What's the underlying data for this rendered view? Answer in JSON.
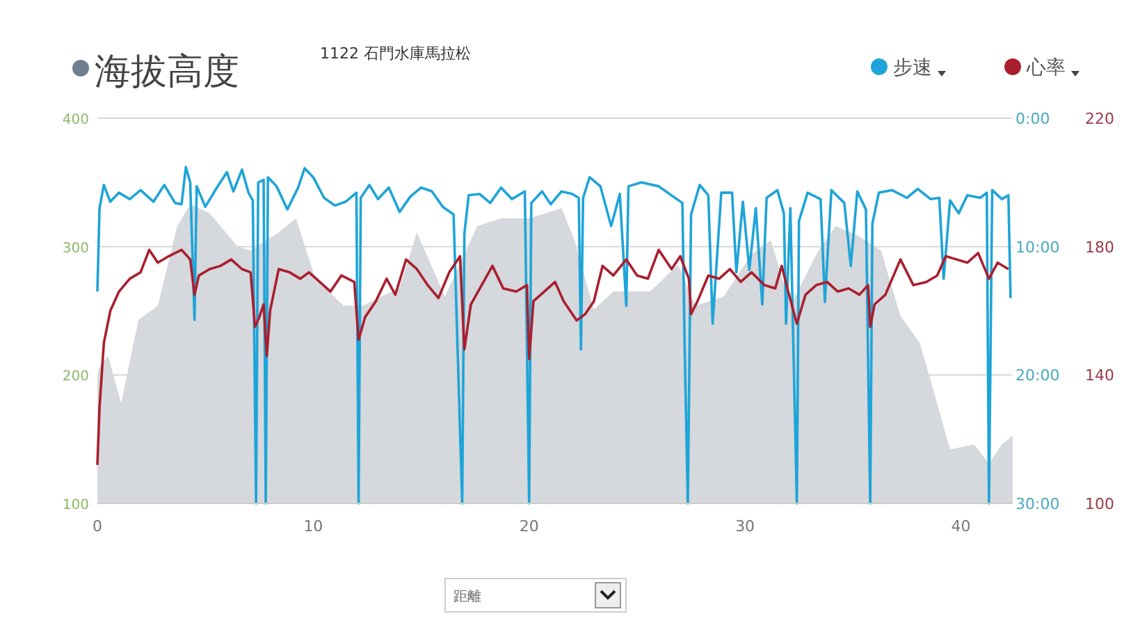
{
  "chart_data": {
    "type": "line",
    "title": "海拔高度",
    "subtitle": "1122 石門水庫馬拉松",
    "xlabel": "距離",
    "xlim": [
      0,
      42.4
    ],
    "xticks": [
      0,
      10,
      20,
      30,
      40
    ],
    "ylim": [
      100,
      400
    ],
    "yticks": [
      100,
      200,
      300,
      400
    ],
    "y2lim": [
      30,
      0
    ],
    "y2ticks": [
      {
        "value": 0,
        "label": "0:00"
      },
      {
        "value": 10,
        "label": "10:00"
      },
      {
        "value": 20,
        "label": "20:00"
      },
      {
        "value": 30,
        "label": "30:00"
      }
    ],
    "y3lim": [
      100,
      220
    ],
    "y3ticks": [
      100,
      140,
      180,
      220
    ],
    "grid": "y",
    "legend": "top right",
    "series": [
      {
        "type": "area",
        "color": "#d5d8dc",
        "x": [
          0,
          0.05,
          0.5,
          1.1,
          1.9,
          2.8,
          3.7,
          4.3,
          5.2,
          6.5,
          7.1,
          8.4,
          9.2,
          10.1,
          11.4,
          12.3,
          14,
          14.8,
          16.1,
          17.6,
          18.7,
          20,
          21.5,
          22.1,
          23,
          23.9,
          25.6,
          26.9,
          27.7,
          29,
          30.3,
          31.2,
          32.1,
          33.4,
          34.2,
          35.3,
          36.3,
          37.2,
          38.1,
          38.9,
          39.5,
          40.6,
          41.3,
          41.9,
          42.4
        ],
        "values": [
          196,
          205,
          215,
          178,
          243,
          254,
          316,
          333,
          326,
          300,
          297,
          311,
          322,
          275,
          254,
          254,
          268,
          311,
          261,
          316,
          322,
          322,
          330,
          305,
          251,
          265,
          265,
          286,
          254,
          261,
          294,
          305,
          254,
          297,
          316,
          308,
          297,
          246,
          225,
          178,
          142,
          146,
          131,
          146,
          153
        ]
      },
      {
        "name": "步速",
        "axis": "y2",
        "color": "#1ea4d8",
        "x": [
          0,
          0.1,
          0.3,
          0.6,
          1,
          1.5,
          2,
          2.6,
          3.1,
          3.6,
          3.9,
          4.1,
          4.3,
          4.5,
          4.6,
          5,
          5.5,
          6,
          6.3,
          6.7,
          7,
          7.2,
          7.35,
          7.45,
          7.7,
          7.8,
          7.9,
          8.3,
          8.8,
          9.3,
          9.6,
          10,
          10.5,
          11,
          11.5,
          12,
          12.1,
          12.2,
          12.6,
          13,
          13.5,
          14,
          14.5,
          15,
          15.5,
          16,
          16.5,
          16.9,
          17,
          17.2,
          17.7,
          18.2,
          18.7,
          19.2,
          19.8,
          20,
          20.1,
          20.6,
          21,
          21.5,
          22,
          22.3,
          22.4,
          22.5,
          22.8,
          23.3,
          23.8,
          24.2,
          24.5,
          24.6,
          25.2,
          26,
          26.5,
          27.1,
          27.2,
          27.35,
          27.5,
          27.9,
          28.3,
          28.5,
          28.9,
          29.4,
          29.6,
          29.9,
          30.2,
          30.5,
          30.8,
          31,
          31.5,
          31.8,
          31.9,
          32.1,
          32.4,
          32.5,
          32.9,
          33.5,
          33.7,
          34,
          34.6,
          34.9,
          35.2,
          35.6,
          35.8,
          35.9,
          36.2,
          36.8,
          37.5,
          38,
          38.6,
          39,
          39.2,
          39.5,
          39.9,
          40.3,
          40.9,
          41.2,
          41.3,
          41.45,
          41.9,
          42.2,
          42.3
        ],
        "values": [
          13.5,
          7,
          5.2,
          6.5,
          5.8,
          6.3,
          5.6,
          6.5,
          5.2,
          6.6,
          6.7,
          3.8,
          5,
          15.7,
          5.3,
          6.9,
          5.5,
          4.2,
          5.7,
          4,
          5.8,
          6.4,
          30,
          5,
          4.8,
          30,
          4.6,
          5.3,
          7.1,
          5.4,
          3.9,
          4.6,
          6.2,
          6.8,
          6.5,
          5.8,
          30,
          6.2,
          5.2,
          6.3,
          5.4,
          7.3,
          6.1,
          5.4,
          5.7,
          6.9,
          7.5,
          30,
          9,
          6,
          5.9,
          6.6,
          5.4,
          6.3,
          5.7,
          30,
          6.6,
          5.7,
          6.7,
          5.7,
          5.9,
          6.2,
          18,
          6.2,
          4.6,
          5.3,
          8.4,
          5.9,
          14.6,
          5.3,
          5,
          5.3,
          5.9,
          6.6,
          17.4,
          30,
          7.5,
          5.2,
          6,
          16,
          5.8,
          5.8,
          12,
          6.5,
          11.8,
          7,
          14.5,
          6.2,
          5.6,
          7.4,
          16,
          7,
          30,
          8,
          5.8,
          6.3,
          14.3,
          5.6,
          6.6,
          11.5,
          5.7,
          7.1,
          30,
          8.2,
          5.8,
          5.6,
          6.2,
          5.5,
          6.3,
          6.2,
          12.5,
          6.4,
          7.4,
          6,
          6.2,
          5.8,
          30,
          5.6,
          6.3,
          6,
          14
        ]
      },
      {
        "name": "心率",
        "axis": "y3",
        "color": "#a91f2e",
        "x": [
          0,
          0.1,
          0.3,
          0.6,
          1,
          1.5,
          2,
          2.4,
          2.8,
          3.3,
          3.9,
          4.3,
          4.5,
          4.7,
          5.2,
          5.7,
          6.2,
          6.7,
          7.1,
          7.3,
          7.5,
          7.7,
          7.85,
          8,
          8.4,
          8.9,
          9.4,
          9.8,
          10.3,
          10.8,
          11.3,
          11.9,
          12.1,
          12.4,
          12.9,
          13.4,
          13.8,
          14.3,
          14.8,
          15.3,
          15.8,
          16.3,
          16.8,
          17,
          17.3,
          17.8,
          18.3,
          18.8,
          19.4,
          19.9,
          20,
          20.2,
          20.7,
          21.2,
          21.6,
          22.2,
          22.6,
          23,
          23.4,
          23.9,
          24.5,
          25,
          25.5,
          26,
          26.6,
          27,
          27.4,
          27.5,
          27.8,
          28.3,
          28.8,
          29.3,
          29.8,
          30.3,
          30.9,
          31.4,
          31.7,
          32,
          32.4,
          32.8,
          33.3,
          33.8,
          34.3,
          34.8,
          35.3,
          35.7,
          35.8,
          36,
          36.5,
          37.2,
          37.8,
          38.4,
          38.9,
          39.3,
          39.8,
          40.3,
          40.8,
          41.3,
          41.7,
          42.2
        ],
        "values": [
          112,
          130,
          150,
          160,
          166,
          170,
          172,
          179,
          175,
          177,
          179,
          176,
          165,
          171,
          173,
          174,
          176,
          173,
          172,
          155,
          158,
          162,
          146,
          160,
          173,
          172,
          170,
          172,
          169,
          166,
          171,
          169,
          151,
          158,
          163,
          170,
          165,
          176,
          173,
          168,
          164,
          172,
          177,
          148,
          162,
          168,
          174,
          167,
          166,
          168,
          145,
          163,
          166,
          169,
          163,
          157,
          159,
          163,
          174,
          171,
          176,
          171,
          170,
          179,
          173,
          177,
          170,
          159,
          163,
          171,
          170,
          173,
          169,
          172,
          168,
          167,
          174,
          166,
          156,
          165,
          168,
          169,
          166,
          167,
          165,
          168,
          155,
          162,
          165,
          176,
          168,
          169,
          171,
          177,
          176,
          175,
          178,
          170,
          175,
          173
        ]
      }
    ]
  }
}
